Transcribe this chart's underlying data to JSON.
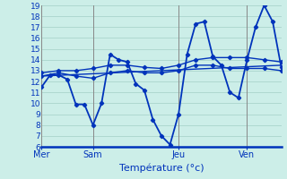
{
  "title": "Température (°c)",
  "background_color": "#cceee8",
  "grid_color": "#aad4cc",
  "line_color": "#0033bb",
  "ylim": [
    6,
    19
  ],
  "yticks": [
    6,
    7,
    8,
    9,
    10,
    11,
    12,
    13,
    14,
    15,
    16,
    17,
    18,
    19
  ],
  "day_labels": [
    "Mer",
    "Sam",
    "Jeu",
    "Ven"
  ],
  "day_positions": [
    0,
    30,
    80,
    120
  ],
  "xlim": [
    0,
    140
  ],
  "series": [
    {
      "x": [
        0,
        5,
        10,
        15,
        20,
        25,
        30,
        35,
        40,
        45,
        50,
        55,
        60,
        65,
        70,
        75,
        80,
        85,
        90,
        95,
        100,
        105,
        110,
        115,
        120,
        125,
        130,
        135,
        140
      ],
      "y": [
        11.5,
        12.6,
        12.6,
        12.2,
        9.9,
        9.9,
        8.0,
        10.0,
        14.5,
        14.0,
        13.8,
        11.8,
        11.2,
        8.5,
        7.0,
        6.2,
        9.0,
        14.5,
        17.3,
        17.5,
        14.3,
        13.5,
        11.0,
        10.5,
        14.0,
        17.0,
        19.0,
        17.5,
        13.3
      ],
      "markers": true
    },
    {
      "x": [
        0,
        10,
        20,
        30,
        40,
        50,
        60,
        70,
        80,
        90,
        100,
        110,
        120,
        130,
        140
      ],
      "y": [
        12.8,
        13.0,
        13.0,
        13.2,
        13.5,
        13.5,
        13.3,
        13.2,
        13.5,
        14.0,
        14.2,
        14.2,
        14.2,
        14.0,
        13.8
      ],
      "markers": true
    },
    {
      "x": [
        0,
        10,
        20,
        30,
        40,
        50,
        60,
        70,
        80,
        90,
        100,
        110,
        120,
        130,
        140
      ],
      "y": [
        12.5,
        12.8,
        12.5,
        12.3,
        12.8,
        13.0,
        12.8,
        12.8,
        13.0,
        13.5,
        13.5,
        13.2,
        13.2,
        13.2,
        13.0
      ],
      "markers": true
    },
    {
      "x": [
        0,
        140
      ],
      "y": [
        12.5,
        13.5
      ],
      "markers": false
    }
  ]
}
